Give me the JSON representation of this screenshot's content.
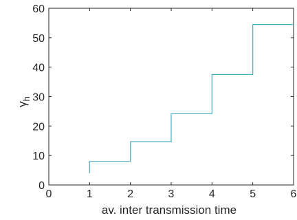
{
  "chart_data": {
    "type": "line",
    "step": true,
    "xlabel": "av. inter transmission time",
    "ylabel": "γ",
    "ylabel_subscript": "h",
    "xlim": [
      0,
      6
    ],
    "ylim": [
      0,
      60
    ],
    "xticks": [
      0,
      1,
      2,
      3,
      4,
      5,
      6
    ],
    "yticks": [
      0,
      10,
      20,
      30,
      40,
      50,
      60
    ],
    "grid": false,
    "box": true,
    "series": [
      {
        "color": "#4bacc6",
        "x": [
          1,
          1,
          2,
          2,
          3,
          3,
          4,
          4,
          5,
          5,
          6
        ],
        "y": [
          4,
          8,
          8,
          14.7,
          14.7,
          24.2,
          24.2,
          37.5,
          37.5,
          54.5,
          54.5
        ]
      }
    ]
  }
}
